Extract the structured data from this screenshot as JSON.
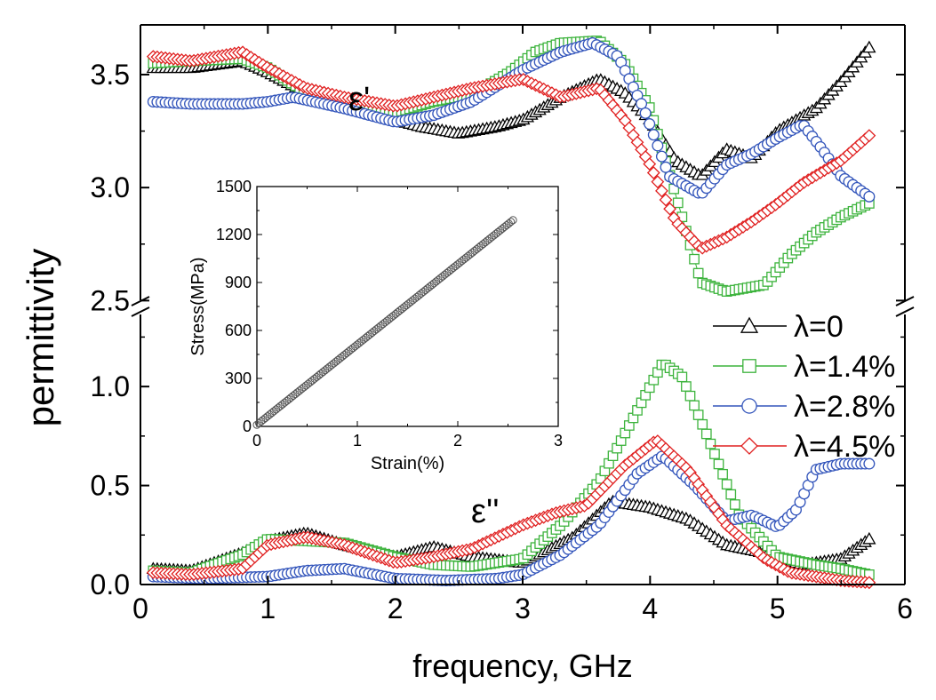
{
  "chart_data": {
    "type": "line",
    "xlabel": "frequency, GHz",
    "ylabel": "permittivity",
    "xlim": [
      0,
      6
    ],
    "x_ticks": [
      "0",
      "1",
      "2",
      "3",
      "4",
      "5",
      "6"
    ],
    "y_axis_break": true,
    "upper_panel": {
      "annotation": "ε'",
      "ylim": [
        2.47,
        3.72
      ],
      "y_ticks": [
        "2.5",
        "3.0",
        "3.5"
      ]
    },
    "lower_panel": {
      "annotation": "ε''",
      "ylim": [
        0,
        1.4
      ],
      "y_ticks": [
        "0.0",
        "0.5",
        "1.0"
      ]
    },
    "legend": {
      "placement": "right",
      "entries": [
        "λ=0",
        "λ=1.4%",
        "λ=2.8%",
        "λ=4.5%"
      ]
    },
    "series": [
      {
        "name": "λ=0",
        "color": "#000000",
        "marker": "triangle",
        "eps_real": {
          "x": [
            0.1,
            0.4,
            0.8,
            1.0,
            1.3,
            1.6,
            2.0,
            2.2,
            2.5,
            2.8,
            3.0,
            3.3,
            3.6,
            3.8,
            4.0,
            4.2,
            4.4,
            4.6,
            4.8,
            5.0,
            5.3,
            5.5,
            5.72
          ],
          "y": [
            3.53,
            3.53,
            3.56,
            3.51,
            3.42,
            3.37,
            3.3,
            3.27,
            3.24,
            3.27,
            3.3,
            3.4,
            3.48,
            3.42,
            3.3,
            3.12,
            3.05,
            3.17,
            3.13,
            3.25,
            3.35,
            3.47,
            3.62
          ]
        },
        "eps_imag": {
          "x": [
            0.1,
            0.4,
            0.8,
            1.0,
            1.3,
            1.6,
            2.0,
            2.3,
            2.6,
            3.0,
            3.4,
            3.7,
            4.0,
            4.3,
            4.6,
            4.9,
            5.2,
            5.5,
            5.72
          ],
          "y": [
            0.08,
            0.07,
            0.16,
            0.22,
            0.26,
            0.2,
            0.14,
            0.19,
            0.14,
            0.11,
            0.24,
            0.42,
            0.39,
            0.33,
            0.2,
            0.16,
            0.1,
            0.13,
            0.23
          ]
        }
      },
      {
        "name": "λ=1.4%",
        "color": "#3cb33c",
        "marker": "square",
        "eps_real": {
          "x": [
            0.1,
            0.4,
            0.8,
            1.0,
            1.3,
            1.6,
            2.0,
            2.3,
            2.6,
            2.9,
            3.1,
            3.3,
            3.6,
            3.8,
            4.0,
            4.2,
            4.4,
            4.6,
            4.9,
            5.1,
            5.3,
            5.5,
            5.72
          ],
          "y": [
            3.55,
            3.56,
            3.57,
            3.53,
            3.42,
            3.38,
            3.33,
            3.38,
            3.41,
            3.51,
            3.6,
            3.64,
            3.65,
            3.55,
            3.35,
            2.97,
            2.58,
            2.54,
            2.57,
            2.7,
            2.8,
            2.87,
            2.93
          ]
        },
        "eps_imag": {
          "x": [
            0.1,
            0.4,
            0.8,
            1.0,
            1.3,
            1.6,
            2.0,
            2.3,
            2.6,
            3.0,
            3.3,
            3.6,
            3.9,
            4.1,
            4.25,
            4.45,
            4.7,
            5.0,
            5.3,
            5.5,
            5.72
          ],
          "y": [
            0.07,
            0.06,
            0.15,
            0.23,
            0.22,
            0.21,
            0.14,
            0.1,
            0.09,
            0.13,
            0.3,
            0.52,
            0.88,
            1.12,
            1.05,
            0.75,
            0.35,
            0.14,
            0.1,
            0.08,
            0.05
          ]
        }
      },
      {
        "name": "λ=2.8%",
        "color": "#3355bb",
        "marker": "circle",
        "eps_real": {
          "x": [
            0.1,
            0.4,
            0.8,
            1.0,
            1.2,
            1.6,
            2.0,
            2.3,
            2.6,
            3.0,
            3.3,
            3.55,
            3.75,
            3.95,
            4.15,
            4.4,
            4.6,
            4.8,
            5.0,
            5.2,
            5.35,
            5.5,
            5.72
          ],
          "y": [
            3.38,
            3.37,
            3.37,
            3.38,
            3.4,
            3.35,
            3.29,
            3.32,
            3.38,
            3.52,
            3.6,
            3.64,
            3.58,
            3.35,
            3.05,
            2.97,
            3.1,
            3.15,
            3.22,
            3.28,
            3.17,
            3.05,
            2.96
          ]
        },
        "eps_imag": {
          "x": [
            0.1,
            0.5,
            1.0,
            1.3,
            1.6,
            2.0,
            2.4,
            2.8,
            3.0,
            3.3,
            3.6,
            3.9,
            4.1,
            4.35,
            4.6,
            4.8,
            5.0,
            5.15,
            5.3,
            5.5,
            5.72
          ],
          "y": [
            0.04,
            0.03,
            0.04,
            0.07,
            0.08,
            0.03,
            0.02,
            0.03,
            0.05,
            0.15,
            0.3,
            0.56,
            0.65,
            0.5,
            0.32,
            0.35,
            0.29,
            0.38,
            0.58,
            0.61,
            0.61
          ]
        }
      },
      {
        "name": "λ=4.5%",
        "color": "#e02020",
        "marker": "diamond",
        "eps_real": {
          "x": [
            0.1,
            0.4,
            0.8,
            1.0,
            1.3,
            1.6,
            2.0,
            2.3,
            2.6,
            3.0,
            3.3,
            3.6,
            3.8,
            4.0,
            4.2,
            4.4,
            4.6,
            4.8,
            5.0,
            5.2,
            5.5,
            5.72
          ],
          "y": [
            3.58,
            3.56,
            3.6,
            3.53,
            3.44,
            3.4,
            3.36,
            3.4,
            3.44,
            3.48,
            3.4,
            3.44,
            3.3,
            3.1,
            2.85,
            2.73,
            2.78,
            2.85,
            2.93,
            3.02,
            3.12,
            3.23
          ]
        },
        "eps_imag": {
          "x": [
            0.1,
            0.4,
            0.8,
            1.0,
            1.3,
            1.6,
            2.0,
            2.3,
            2.6,
            3.0,
            3.25,
            3.5,
            3.8,
            4.05,
            4.3,
            4.6,
            4.9,
            5.1,
            5.3,
            5.5,
            5.72
          ],
          "y": [
            0.06,
            0.05,
            0.08,
            0.2,
            0.24,
            0.2,
            0.11,
            0.14,
            0.18,
            0.3,
            0.36,
            0.4,
            0.6,
            0.73,
            0.58,
            0.3,
            0.13,
            0.06,
            0.04,
            0.02,
            0.01
          ]
        }
      }
    ],
    "inset": {
      "type": "scatter",
      "xlabel": "Strain(%)",
      "ylabel": "Stress(MPa)",
      "xlim": [
        0,
        3
      ],
      "ylim": [
        0,
        1500
      ],
      "x_ticks": [
        "0",
        "1",
        "2",
        "3"
      ],
      "y_ticks": [
        "0",
        "300",
        "600",
        "900",
        "1200",
        "1500"
      ],
      "color": "#555555",
      "marker": "circle",
      "x": [
        0.0,
        2.55
      ],
      "y": [
        10,
        1290
      ]
    }
  }
}
